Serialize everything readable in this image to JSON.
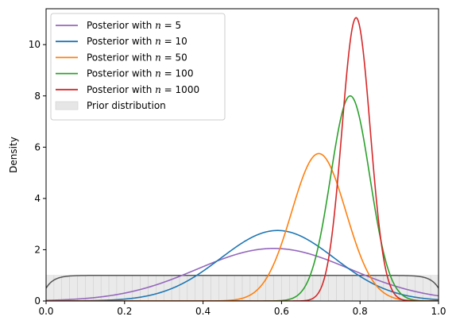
{
  "chart_data": {
    "type": "line",
    "xlabel": "",
    "ylabel": "Density",
    "xlim": [
      0.0,
      1.0
    ],
    "ylim": [
      0,
      11.4
    ],
    "xticks": [
      "0.0",
      "0.2",
      "0.4",
      "0.6",
      "0.8",
      "1.0"
    ],
    "yticks": [
      "0",
      "2",
      "4",
      "6",
      "8",
      "10"
    ],
    "legend_position": "top-left",
    "grid": false,
    "series": [
      {
        "name": "Posterior with n = 5",
        "name_prefix": "Posterior with ",
        "name_var": "n",
        "name_suffix": " = 5",
        "color": "#9467bd",
        "peak_x": 0.58,
        "peak_y": 2.05,
        "sd": 0.195
      },
      {
        "name": "Posterior with n = 10",
        "name_prefix": "Posterior with ",
        "name_var": "n",
        "name_suffix": " = 10",
        "color": "#1f77b4",
        "peak_x": 0.59,
        "peak_y": 2.75,
        "sd": 0.145
      },
      {
        "name": "Posterior with n = 50",
        "name_prefix": "Posterior with ",
        "name_var": "n",
        "name_suffix": " = 50",
        "color": "#ff7f0e",
        "peak_x": 0.695,
        "peak_y": 5.75,
        "sd": 0.069
      },
      {
        "name": "Posterior with n = 100",
        "name_prefix": "Posterior with ",
        "name_var": "n",
        "name_suffix": " = 100",
        "color": "#2ca02c",
        "peak_x": 0.775,
        "peak_y": 8.0,
        "sd": 0.05
      },
      {
        "name": "Posterior with n = 1000",
        "name_prefix": "Posterior with ",
        "name_var": "n",
        "name_suffix": " = 1000",
        "color": "#d62728",
        "peak_x": 0.79,
        "peak_y": 11.05,
        "sd": 0.036
      }
    ],
    "prior": {
      "name": "Prior distribution",
      "fill_color": "#e6e6e6",
      "line_color": "#555555",
      "bar_height": 1.0,
      "kde_plateau": 1.0
    }
  }
}
